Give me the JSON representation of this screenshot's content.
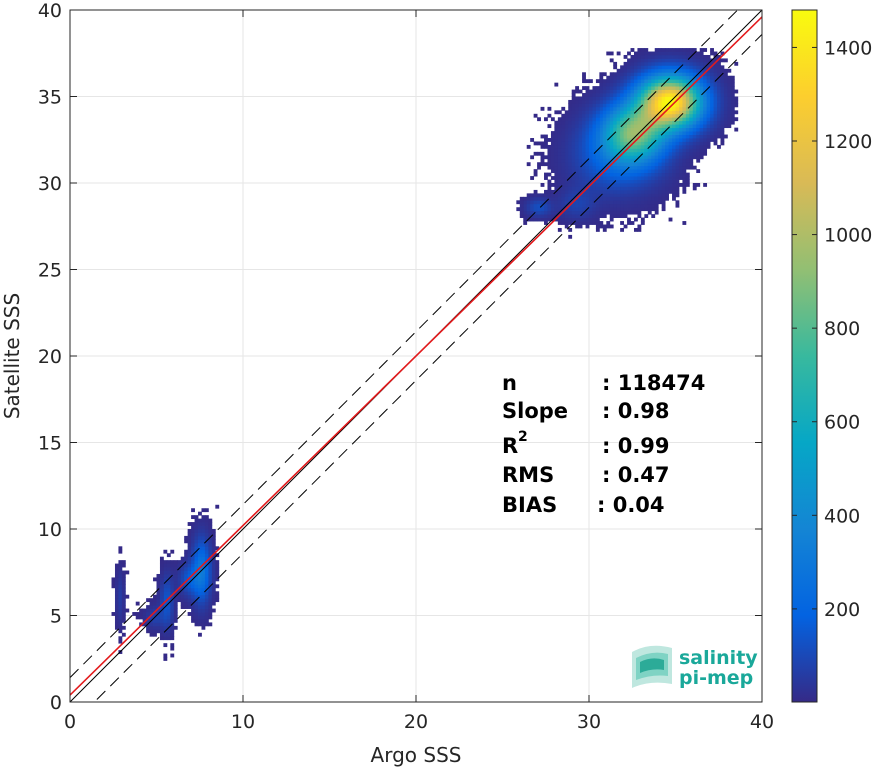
{
  "chart_data": {
    "type": "heatmap",
    "xlabel": "Argo SSS",
    "ylabel": "Satellite SSS",
    "xlim": [
      0,
      40
    ],
    "ylim": [
      0,
      40
    ],
    "xticks": [
      0,
      10,
      20,
      30,
      40
    ],
    "yticks": [
      0,
      5,
      10,
      15,
      20,
      25,
      30,
      35,
      40
    ],
    "grid": true,
    "colorbar": {
      "colormap": "parula",
      "range": [
        1,
        1480
      ],
      "ticks": [
        200,
        400,
        600,
        800,
        1000,
        1200,
        1400
      ]
    },
    "reference_lines": [
      {
        "kind": "identity",
        "intercept": 0,
        "slope": 1,
        "color": "#000000",
        "style": "solid"
      },
      {
        "kind": "regression",
        "intercept": 0.4,
        "slope": 0.98,
        "color": "#e31a1c",
        "style": "solid"
      },
      {
        "kind": "upper-bound",
        "intercept": 1.41,
        "slope": 1,
        "color": "#000000",
        "style": "dashed"
      },
      {
        "kind": "lower-bound",
        "intercept": -1.41,
        "slope": 1,
        "color": "#000000",
        "style": "dashed"
      }
    ],
    "clusters": [
      {
        "x_center": 34.6,
        "y_center": 34.6,
        "sx": 1.2,
        "sy": 1.0,
        "peak_count": 1450
      },
      {
        "x_center": 32.5,
        "y_center": 32.8,
        "sx": 1.2,
        "sy": 1.1,
        "peak_count": 800
      },
      {
        "x_center": 31.5,
        "y_center": 31.5,
        "sx": 1.6,
        "sy": 1.4,
        "peak_count": 200
      },
      {
        "x_center": 27.0,
        "y_center": 28.5,
        "sx": 0.5,
        "sy": 0.35,
        "peak_count": 120
      },
      {
        "x_center": 29.2,
        "y_center": 28.7,
        "sx": 0.7,
        "sy": 0.6,
        "peak_count": 80
      },
      {
        "x_center": 7.5,
        "y_center": 7.5,
        "sx": 0.35,
        "sy": 1.2,
        "peak_count": 300
      },
      {
        "x_center": 6.8,
        "y_center": 7.0,
        "sx": 0.4,
        "sy": 0.6,
        "peak_count": 150
      },
      {
        "x_center": 5.5,
        "y_center": 5.7,
        "sx": 0.25,
        "sy": 1.0,
        "peak_count": 150
      },
      {
        "x_center": 4.8,
        "y_center": 4.8,
        "sx": 0.35,
        "sy": 0.4,
        "peak_count": 80
      },
      {
        "x_center": 2.8,
        "y_center": 6.0,
        "sx": 0.15,
        "sy": 1.0,
        "peak_count": 60
      }
    ],
    "stats": [
      {
        "label": "n",
        "value": ": 118474"
      },
      {
        "label": "Slope",
        "value": ": 0.98"
      },
      {
        "label": "R",
        "sup": "2",
        "value": ": 0.99"
      },
      {
        "label": "RMS",
        "value": ": 0.47"
      },
      {
        "label": "BIAS",
        "value": ": 0.04"
      }
    ]
  },
  "logo": {
    "line1": "salinity",
    "line2": "pi-mep"
  }
}
